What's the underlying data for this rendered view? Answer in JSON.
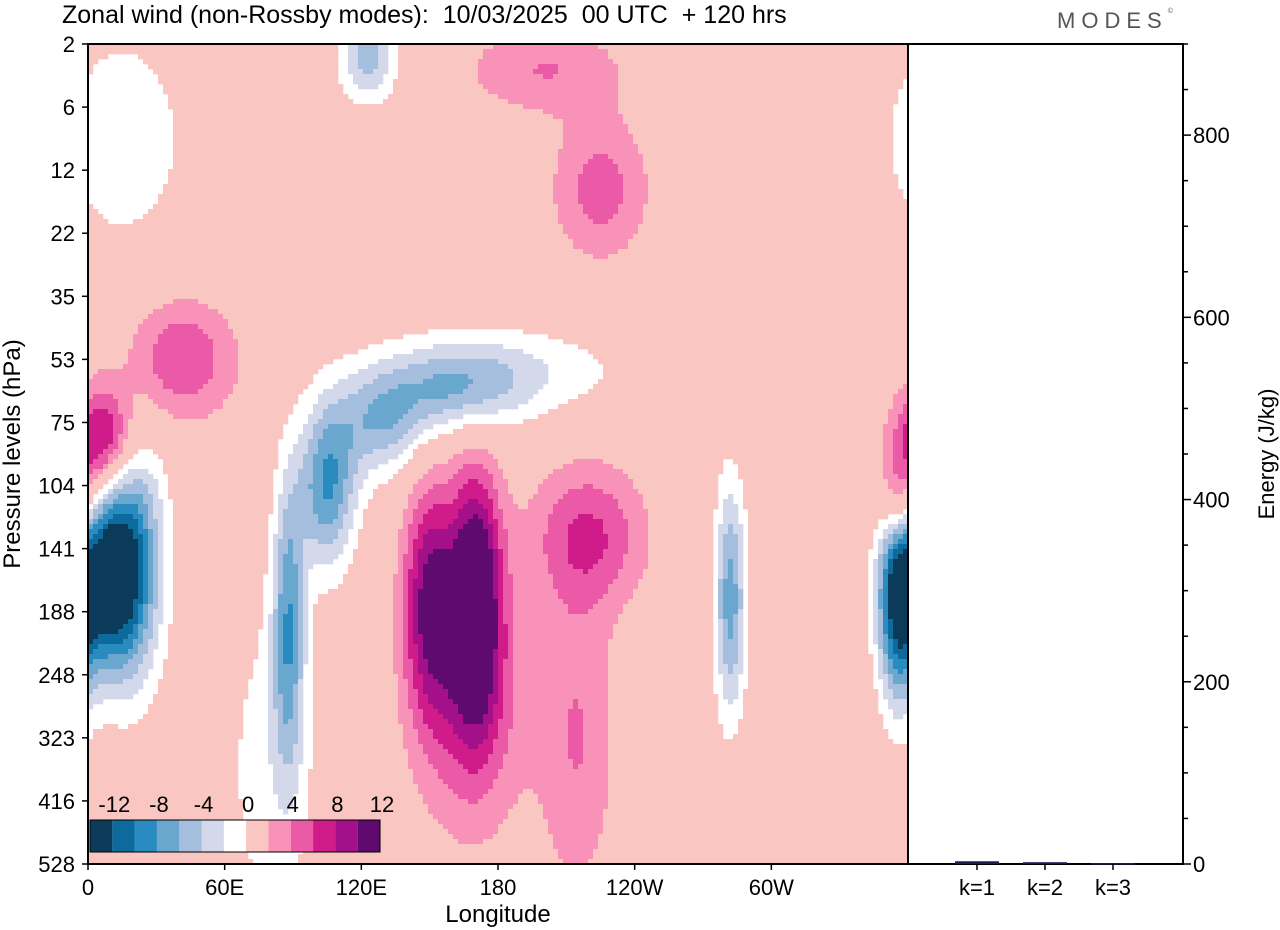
{
  "title": "Zonal wind (non-Rossby modes):  10/03/2025  00 UTC  + 120 hrs",
  "logo": "MODES",
  "colors": {
    "neg": [
      "#0c3a5a",
      "#0d6a9c",
      "#2a8bc0",
      "#6aa7cf",
      "#a6bedd",
      "#d3d8ea"
    ],
    "pos": [
      "#f9c6c1",
      "#f892b8",
      "#eb5aa6",
      "#d01c8b",
      "#a3108a",
      "#5e0a6e"
    ]
  },
  "chart_data": [
    {
      "type": "heatmap",
      "xlabel": "Longitude",
      "ylabel": "Pressure levels (hPa)",
      "x_ticks": [
        "0",
        "60E",
        "120E",
        "180",
        "120W",
        "60W"
      ],
      "x_range": [
        0,
        360
      ],
      "y_ticks": [
        "2",
        "6",
        "12",
        "22",
        "35",
        "53",
        "75",
        "104",
        "141",
        "188",
        "248",
        "323",
        "416",
        "528"
      ],
      "colorbar_labels": [
        "-12",
        "-8",
        "-4",
        "0",
        "4",
        "8",
        "12"
      ],
      "colorbar_levels": [
        -14,
        -12,
        -10,
        -8,
        -6,
        -4,
        -2,
        2,
        4,
        6,
        8,
        10,
        12,
        14
      ],
      "features": [
        {
          "lon": 8,
          "level": 8.5,
          "value": -15,
          "slon": 11,
          "slev": 1.0
        },
        {
          "lon": 20,
          "level": 8.0,
          "value": -8,
          "slon": 10,
          "slev": 1.5
        },
        {
          "lon": 7,
          "level": 6.3,
          "value": 10,
          "slon": 10,
          "slev": 0.6
        },
        {
          "lon": 40,
          "level": 5.0,
          "value": 6,
          "slon": 18,
          "slev": 0.7
        },
        {
          "lon": 88,
          "level": 9.2,
          "value": -9,
          "slon": 5,
          "slev": 1.6
        },
        {
          "lon": 105,
          "level": 7.0,
          "value": -10,
          "slon": 9,
          "slev": 0.9
        },
        {
          "lon": 128,
          "level": 6.0,
          "value": -7,
          "slon": 14,
          "slev": 0.6
        },
        {
          "lon": 160,
          "level": 5.5,
          "value": -6,
          "slon": 20,
          "slev": 0.5
        },
        {
          "lon": 185,
          "level": 5.2,
          "value": -4,
          "slon": 35,
          "slev": 0.5
        },
        {
          "lon": 150,
          "level": 8.8,
          "value": 10,
          "slon": 8,
          "slev": 1.3
        },
        {
          "lon": 170,
          "level": 8.8,
          "value": 14,
          "slon": 8,
          "slev": 1.4
        },
        {
          "lon": 168,
          "level": 10.5,
          "value": 5,
          "slon": 18,
          "slev": 1.5
        },
        {
          "lon": 220,
          "level": 7.8,
          "value": 6,
          "slon": 18,
          "slev": 0.8
        },
        {
          "lon": 215,
          "level": 11.0,
          "value": 4,
          "slon": 12,
          "slev": 1.8
        },
        {
          "lon": 225,
          "level": 2.3,
          "value": 5,
          "slon": 15,
          "slev": 0.8
        },
        {
          "lon": 282,
          "level": 8.8,
          "value": -9,
          "slon": 5,
          "slev": 1.3
        },
        {
          "lon": 355,
          "level": 8.8,
          "value": -11,
          "slon": 6,
          "slev": 1.2
        },
        {
          "lon": 356,
          "level": 7.3,
          "value": 8,
          "slon": 6,
          "slev": 0.6
        },
        {
          "lon": 15,
          "level": 1.5,
          "value": -3,
          "slon": 25,
          "slev": 1.5
        },
        {
          "lon": 123,
          "level": 0.2,
          "value": -7,
          "slon": 9,
          "slev": 0.5
        },
        {
          "lon": 200,
          "level": 0.4,
          "value": 4,
          "slon": 25,
          "slev": 0.5
        },
        {
          "lon": 80,
          "level": 11.5,
          "value": -3,
          "slon": 15,
          "slev": 2.0
        }
      ]
    },
    {
      "type": "bar",
      "categories": [
        "k=1",
        "k=2",
        "k=3"
      ],
      "values": [
        3,
        2,
        1
      ],
      "ylabel": "Energy (J/kg)",
      "ylim": [
        0,
        900
      ],
      "y_ticks": [
        0,
        200,
        400,
        600,
        800
      ]
    }
  ]
}
